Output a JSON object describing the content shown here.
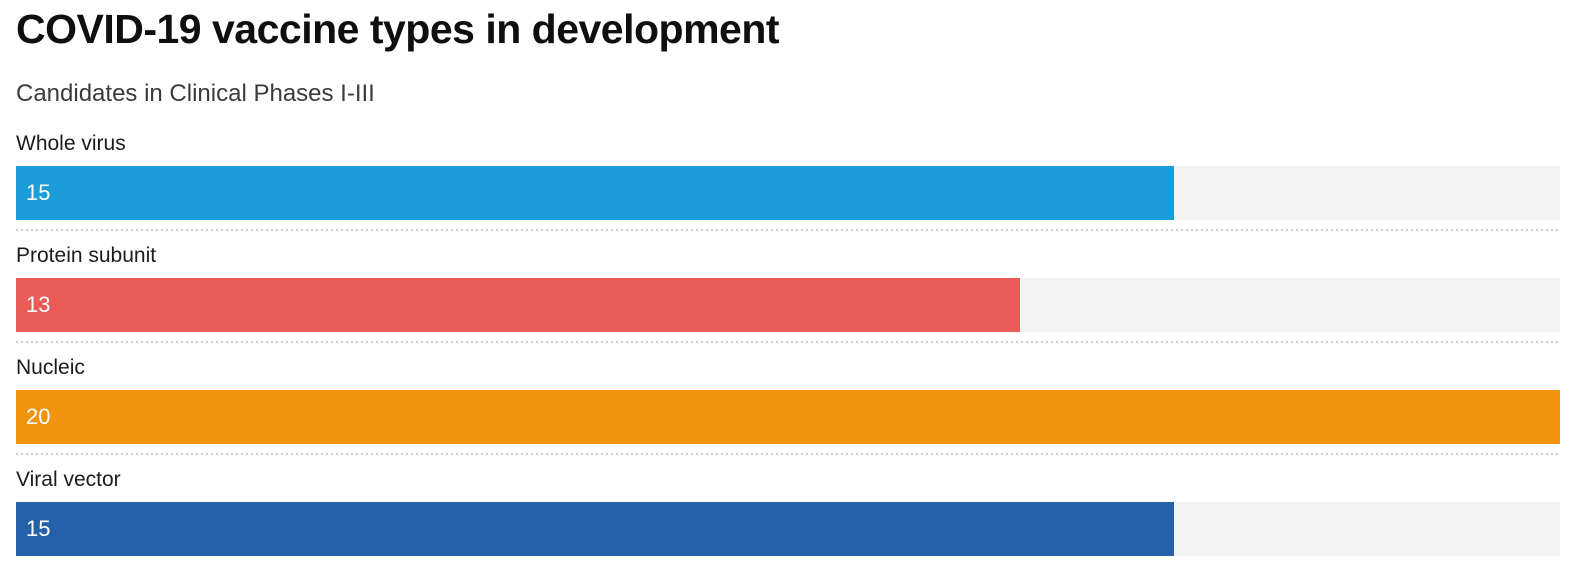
{
  "header": {
    "title": "COVID-19 vaccine types in development",
    "subtitle": "Candidates in Clinical Phases I-III"
  },
  "chart_data": {
    "type": "bar",
    "orientation": "horizontal",
    "title": "COVID-19 vaccine types in development",
    "subtitle": "Candidates in Clinical Phases I-III",
    "categories": [
      "Whole virus",
      "Protein subunit",
      "Nucleic",
      "Viral vector"
    ],
    "values": [
      15,
      13,
      20,
      15
    ],
    "bar_colors": [
      "#1a9dd9",
      "#ea5a57",
      "#f2930d",
      "#2561ab"
    ],
    "track_color": "#f3f3f3",
    "value_label_color": "#ffffff",
    "xlim": [
      0,
      20
    ],
    "grid": false,
    "legend": "none",
    "value_labels_inside_bar": true,
    "dotted_separators_between_rows": true
  }
}
